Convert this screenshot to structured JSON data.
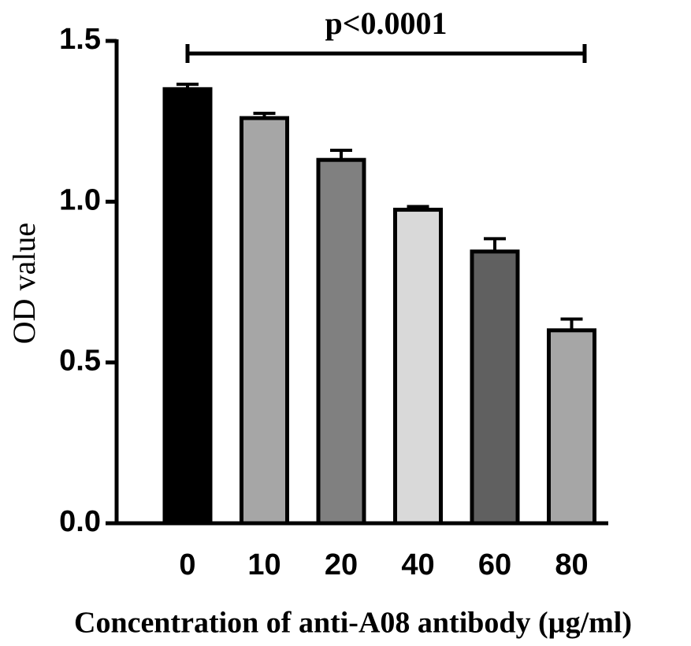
{
  "chart_data": {
    "type": "bar",
    "y_label": "OD value",
    "x_label": "Concentration of anti-A08 antibody (µg/ml)",
    "annotation": "p<0.0001",
    "categories": [
      "0",
      "10",
      "20",
      "40",
      "60",
      "80"
    ],
    "values": [
      1.35,
      1.26,
      1.13,
      0.975,
      0.845,
      0.6
    ],
    "errors": [
      0.015,
      0.015,
      0.03,
      0.01,
      0.04,
      0.035
    ],
    "colors": [
      "#000000",
      "#a6a6a6",
      "#808080",
      "#d9d9d9",
      "#606060",
      "#a6a6a6"
    ],
    "ylim": [
      0,
      1.5
    ],
    "yticks": [
      {
        "value": 0,
        "label": "0.0"
      },
      0.5,
      {
        "value": 1,
        "label": "1.0"
      },
      1.5
    ]
  }
}
